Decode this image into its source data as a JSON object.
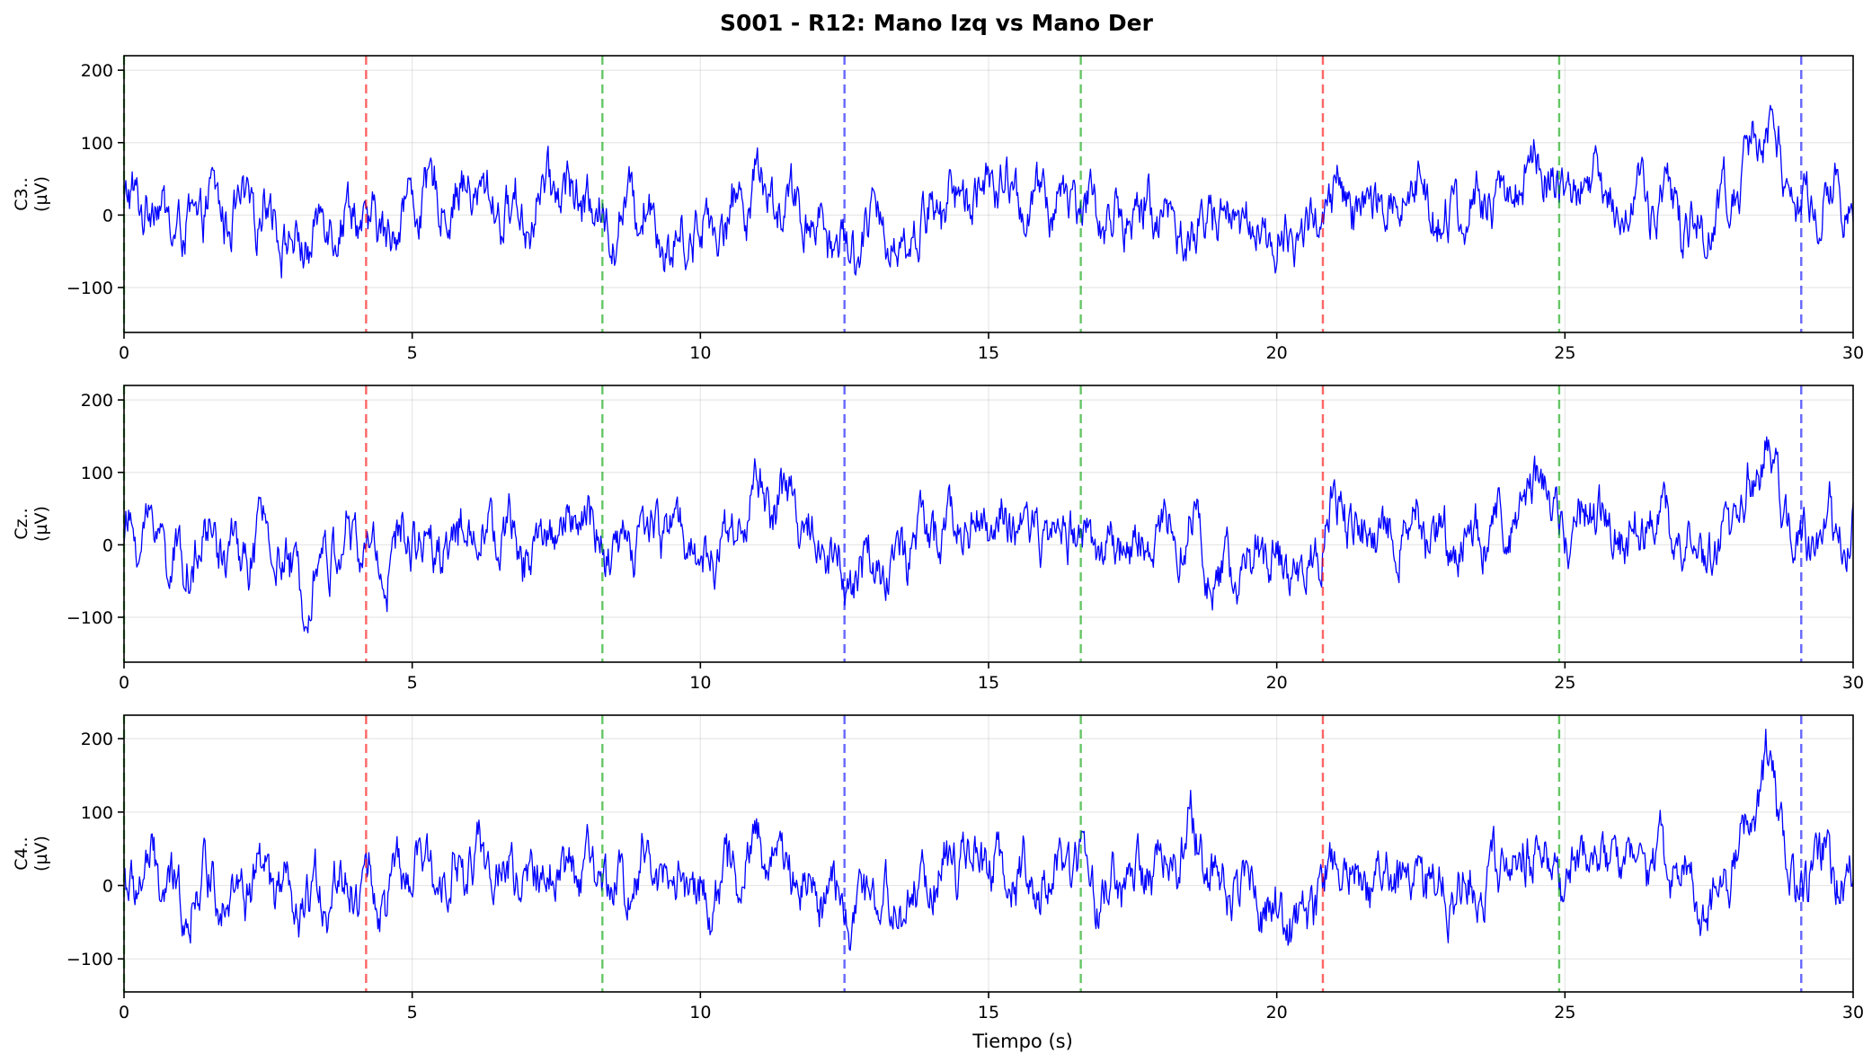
{
  "chart_data": {
    "type": "line",
    "title": "S001 - R12: Mano Izq vs Mano Der",
    "xlabel": "Tiempo (s)",
    "xlim": [
      0,
      30
    ],
    "xticks": [
      0,
      5,
      10,
      15,
      20,
      25,
      30
    ],
    "x_tick_labels": [
      "0",
      "5",
      "10",
      "15",
      "20",
      "25",
      "30"
    ],
    "grid": true,
    "colors": {
      "signal": "#0000ff",
      "red": "#ff0000",
      "green": "#00a000",
      "blue": "#0000ff"
    },
    "event_markers": [
      {
        "t": 0.0,
        "color": "#00a000"
      },
      {
        "t": 4.2,
        "color": "#ff0000"
      },
      {
        "t": 8.3,
        "color": "#00a000"
      },
      {
        "t": 12.5,
        "color": "#0000ff"
      },
      {
        "t": 16.6,
        "color": "#00a000"
      },
      {
        "t": 20.8,
        "color": "#ff0000"
      },
      {
        "t": 24.9,
        "color": "#00a000"
      },
      {
        "t": 29.1,
        "color": "#0000ff"
      }
    ],
    "series": [
      {
        "name": "C3..",
        "ylabel_line1": "C3..",
        "ylabel_line2": "(µV)",
        "ylim": [
          -162,
          220
        ],
        "yticks": [
          -100,
          0,
          100,
          200
        ],
        "y_tick_labels": [
          "−100",
          "0",
          "100",
          "200"
        ],
        "x": [
          0,
          0.5,
          1,
          1.5,
          2,
          2.5,
          3,
          3.5,
          4,
          4.5,
          5,
          5.5,
          6,
          6.5,
          7,
          7.5,
          8,
          8.5,
          9,
          9.5,
          10,
          10.5,
          11,
          11.5,
          12,
          12.5,
          13,
          13.5,
          14,
          14.5,
          15,
          15.5,
          16,
          16.5,
          17,
          17.5,
          18,
          18.5,
          19,
          19.5,
          20,
          20.5,
          21,
          21.5,
          22,
          22.5,
          23,
          23.5,
          24,
          24.5,
          25,
          25.5,
          26,
          26.5,
          27,
          27.5,
          28,
          28.5,
          29,
          29.5,
          30
        ],
        "values": [
          10,
          25,
          -30,
          15,
          -5,
          20,
          -55,
          0,
          5,
          -35,
          25,
          20,
          35,
          10,
          0,
          45,
          20,
          -15,
          30,
          -50,
          -10,
          -5,
          60,
          5,
          0,
          -45,
          -15,
          -40,
          5,
          25,
          40,
          25,
          10,
          35,
          -5,
          0,
          10,
          -30,
          5,
          -10,
          -35,
          -25,
          20,
          0,
          15,
          40,
          -5,
          15,
          20,
          85,
          10,
          60,
          5,
          20,
          0,
          -20,
          40,
          150,
          -10,
          25,
          5
        ]
      },
      {
        "name": "Cz..",
        "ylabel_line1": "Cz..",
        "ylabel_line2": "(µV)",
        "ylim": [
          -162,
          220
        ],
        "yticks": [
          -100,
          0,
          100,
          200
        ],
        "y_tick_labels": [
          "−100",
          "0",
          "100",
          "200"
        ],
        "x": [
          0,
          0.5,
          1,
          1.5,
          2,
          2.5,
          3,
          3.5,
          4,
          4.5,
          5,
          5.5,
          6,
          6.5,
          7,
          7.5,
          8,
          8.5,
          9,
          9.5,
          10,
          10.5,
          11,
          11.5,
          12,
          12.5,
          13,
          13.5,
          14,
          14.5,
          15,
          15.5,
          16,
          16.5,
          17,
          17.5,
          18,
          18.5,
          19,
          19.5,
          20,
          20.5,
          21,
          21.5,
          22,
          22.5,
          23,
          23.5,
          24,
          24.5,
          25,
          25.5,
          26,
          26.5,
          27,
          27.5,
          28,
          28.5,
          29,
          29.5,
          30
        ],
        "values": [
          5,
          30,
          -35,
          10,
          -20,
          15,
          -60,
          -10,
          10,
          -30,
          20,
          5,
          30,
          15,
          -10,
          35,
          25,
          -20,
          15,
          40,
          -20,
          10,
          75,
          55,
          15,
          -40,
          -30,
          -20,
          20,
          25,
          30,
          15,
          10,
          30,
          -10,
          -5,
          20,
          35,
          -60,
          -10,
          -30,
          -35,
          55,
          0,
          20,
          35,
          -15,
          20,
          25,
          95,
          5,
          55,
          10,
          40,
          5,
          -25,
          30,
          140,
          0,
          20,
          10
        ]
      },
      {
        "name": "C4..",
        "ylabel_line1": "C4..",
        "ylabel_line2": "(µV)",
        "ylim": [
          -145,
          232
        ],
        "yticks": [
          -100,
          0,
          100,
          200
        ],
        "y_tick_labels": [
          "−100",
          "0",
          "100",
          "200"
        ],
        "x": [
          0,
          0.5,
          1,
          1.5,
          2,
          2.5,
          3,
          3.5,
          4,
          4.5,
          5,
          5.5,
          6,
          6.5,
          7,
          7.5,
          8,
          8.5,
          9,
          9.5,
          10,
          10.5,
          11,
          11.5,
          12,
          12.5,
          13,
          13.5,
          14,
          14.5,
          15,
          15.5,
          16,
          16.5,
          17,
          17.5,
          18,
          18.5,
          19,
          19.5,
          20,
          20.5,
          21,
          21.5,
          22,
          22.5,
          23,
          23.5,
          24,
          24.5,
          25,
          25.5,
          26,
          26.5,
          27,
          27.5,
          28,
          28.5,
          29,
          29.5,
          30
        ],
        "values": [
          0,
          20,
          -25,
          15,
          -10,
          10,
          -50,
          0,
          10,
          -20,
          20,
          15,
          25,
          20,
          -5,
          30,
          20,
          -10,
          25,
          20,
          -15,
          5,
          50,
          20,
          5,
          -35,
          -30,
          -25,
          15,
          30,
          30,
          20,
          5,
          25,
          -10,
          10,
          25,
          70,
          -5,
          5,
          -45,
          -55,
          40,
          10,
          15,
          25,
          -20,
          10,
          15,
          60,
          -10,
          55,
          10,
          30,
          10,
          -30,
          35,
          160,
          -10,
          30,
          0
        ]
      }
    ]
  }
}
